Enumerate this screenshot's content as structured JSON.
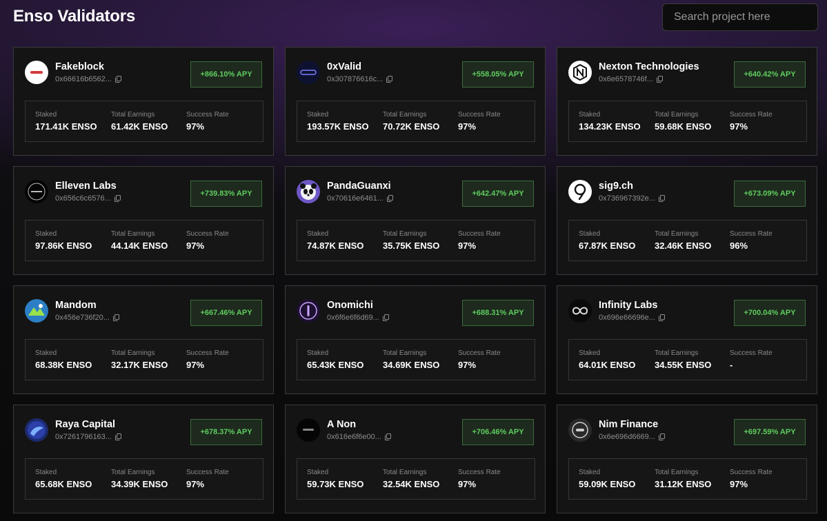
{
  "header": {
    "title": "Enso Validators"
  },
  "search": {
    "placeholder": "Search project here",
    "value": ""
  },
  "labels": {
    "staked": "Staked",
    "earnings": "Total Earnings",
    "success": "Success Rate"
  },
  "validators": [
    {
      "name": "Fakeblock",
      "address": "0x66616b6562...",
      "apy": "+866.10% APY",
      "staked": "171.41K ENSO",
      "earnings": "61.42K ENSO",
      "success": "97%",
      "logo": "fakeblock-logo",
      "logo_bg": "#ffffff",
      "logo_fg": "#d23b3b"
    },
    {
      "name": "0xValid",
      "address": "0x307876616c...",
      "apy": "+558.05% APY",
      "staked": "193.57K ENSO",
      "earnings": "70.72K ENSO",
      "success": "97%",
      "logo": "0xvalid-logo",
      "logo_bg": "#0e1230",
      "logo_fg": "#7c7cff"
    },
    {
      "name": "Nexton Technologies",
      "address": "0x6e6578746f...",
      "apy": "+640.42% APY",
      "staked": "134.23K ENSO",
      "earnings": "59.68K ENSO",
      "success": "97%",
      "logo": "nexton-logo",
      "logo_bg": "#ffffff",
      "logo_fg": "#111111"
    },
    {
      "name": "Elleven Labs",
      "address": "0x656c6c6576...",
      "apy": "+739.83% APY",
      "staked": "97.86K ENSO",
      "earnings": "44.14K ENSO",
      "success": "97%",
      "logo": "elleven-logo",
      "logo_bg": "#050505",
      "logo_fg": "#bbbbbb"
    },
    {
      "name": "PandaGuanxi",
      "address": "0x70616e6461...",
      "apy": "+642.47% APY",
      "staked": "74.87K ENSO",
      "earnings": "35.75K ENSO",
      "success": "97%",
      "logo": "panda-logo",
      "logo_bg": "#6f57c7",
      "logo_fg": "#ffffff"
    },
    {
      "name": "sig9.ch",
      "address": "0x736967392e...",
      "apy": "+673.09% APY",
      "staked": "67.87K ENSO",
      "earnings": "32.46K ENSO",
      "success": "96%",
      "logo": "sig9-logo",
      "logo_bg": "#ffffff",
      "logo_fg": "#111111"
    },
    {
      "name": "Mandom",
      "address": "0x456e736f20...",
      "apy": "+667.46% APY",
      "staked": "68.38K ENSO",
      "earnings": "32.17K ENSO",
      "success": "97%",
      "logo": "mandom-logo",
      "logo_bg": "#2c7fc4",
      "logo_fg": "#9be24c"
    },
    {
      "name": "Onomichi",
      "address": "0x6f6e6f6d69...",
      "apy": "+688.31% APY",
      "staked": "65.43K ENSO",
      "earnings": "34.69K ENSO",
      "success": "97%",
      "logo": "onomichi-logo",
      "logo_bg": "#1e1030",
      "logo_fg": "#c9a6ff"
    },
    {
      "name": "Infinity Labs",
      "address": "0x696e66696e...",
      "apy": "+700.04% APY",
      "staked": "64.01K ENSO",
      "earnings": "34.55K ENSO",
      "success": "-",
      "logo": "infinity-labs-logo",
      "logo_bg": "#0a0a0a",
      "logo_fg": "#e0e0e0"
    },
    {
      "name": "Raya Capital",
      "address": "0x7261796163...",
      "apy": "+678.37% APY",
      "staked": "65.68K ENSO",
      "earnings": "34.39K ENSO",
      "success": "97%",
      "logo": "raya-logo",
      "logo_bg": "#1c2a6e",
      "logo_fg": "#7fb0ff"
    },
    {
      "name": "A Non",
      "address": "0x616e6f6e00...",
      "apy": "+706.46% APY",
      "staked": "59.73K ENSO",
      "earnings": "32.54K ENSO",
      "success": "97%",
      "logo": "anon-logo",
      "logo_bg": "#050505",
      "logo_fg": "#888888"
    },
    {
      "name": "Nim Finance",
      "address": "0x6e696d6669...",
      "apy": "+697.59% APY",
      "staked": "59.09K ENSO",
      "earnings": "31.12K ENSO",
      "success": "97%",
      "logo": "nim-logo",
      "logo_bg": "#2a2a2a",
      "logo_fg": "#cfcfcf"
    }
  ],
  "colors": {
    "accent_green": "#5fcd5f",
    "apy_border": "#3c6b3c",
    "card_bg": "#141414",
    "card_border": "#3b3b3b"
  }
}
